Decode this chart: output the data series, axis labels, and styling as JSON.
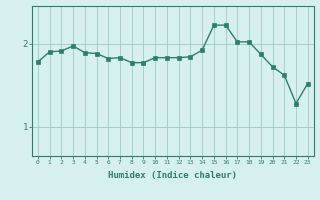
{
  "x": [
    0,
    1,
    2,
    3,
    4,
    5,
    6,
    7,
    8,
    9,
    10,
    11,
    12,
    13,
    14,
    15,
    16,
    17,
    18,
    19,
    20,
    21,
    22,
    23
  ],
  "y": [
    1.78,
    1.9,
    1.91,
    1.97,
    1.89,
    1.88,
    1.82,
    1.83,
    1.77,
    1.77,
    1.83,
    1.83,
    1.83,
    1.84,
    1.92,
    2.22,
    2.22,
    2.02,
    2.02,
    1.87,
    1.72,
    1.62,
    1.28,
    1.52
  ],
  "line_color": "#2e7d6e",
  "marker_color": "#2e7d6e",
  "bg_color": "#d6f0f0",
  "grid_color": "#a0c8c8",
  "axis_color": "#2e7d6e",
  "xlabel": "Humidex (Indice chaleur)",
  "yticks": [
    1,
    2
  ],
  "ylim": [
    0.65,
    2.45
  ],
  "xlim": [
    -0.5,
    23.5
  ],
  "title": ""
}
